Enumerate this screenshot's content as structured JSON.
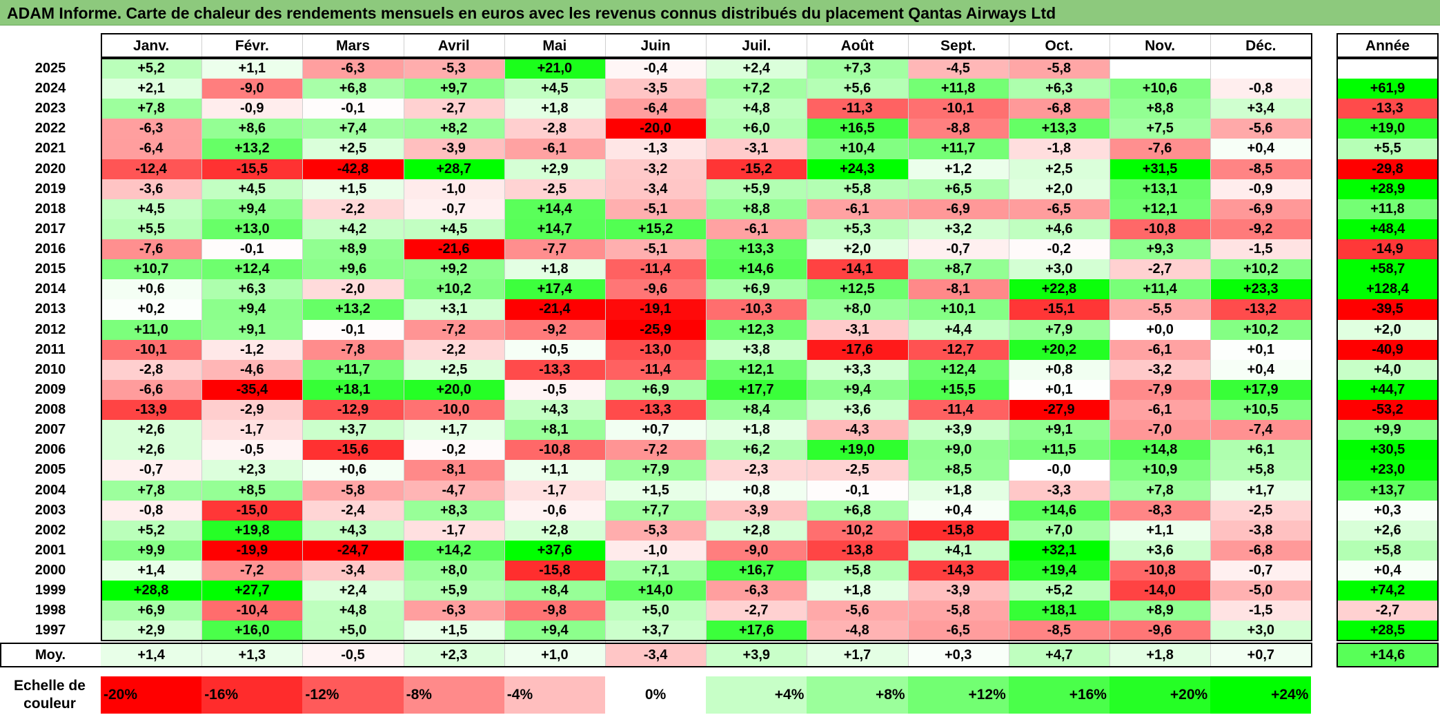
{
  "title": "ADAM Informe. Carte de chaleur des rendements mensuels en euros avec les revenus connus distribués du placement Qantas Airways Ltd",
  "chart_data": {
    "type": "heatmap",
    "title": "ADAM Informe. Carte de chaleur des rendements mensuels en euros avec les revenus connus distribués du placement Qantas Airways Ltd",
    "columns": [
      "Janv.",
      "Févr.",
      "Mars",
      "Avril",
      "Mai",
      "Juin",
      "Juil.",
      "Août",
      "Sept.",
      "Oct.",
      "Nov.",
      "Déc."
    ],
    "year_column_label": "Année",
    "average_row_label": "Moy.",
    "rows": [
      {
        "year": "2025",
        "values": [
          "+5,2",
          "+1,1",
          "-6,3",
          "-5,3",
          "+21,0",
          "-0,4",
          "+2,4",
          "+7,3",
          "-4,5",
          "-5,8",
          "",
          ""
        ],
        "annual": ""
      },
      {
        "year": "2024",
        "values": [
          "+2,1",
          "-9,0",
          "+6,8",
          "+9,7",
          "+4,5",
          "-3,5",
          "+7,2",
          "+5,6",
          "+11,8",
          "+6,3",
          "+10,6",
          "-0,8"
        ],
        "annual": "+61,9"
      },
      {
        "year": "2023",
        "values": [
          "+7,8",
          "-0,9",
          "-0,1",
          "-2,7",
          "+1,8",
          "-6,4",
          "+4,8",
          "-11,3",
          "-10,1",
          "-6,8",
          "+8,8",
          "+3,4"
        ],
        "annual": "-13,3"
      },
      {
        "year": "2022",
        "values": [
          "-6,3",
          "+8,6",
          "+7,4",
          "+8,2",
          "-2,8",
          "-20,0",
          "+6,0",
          "+16,5",
          "-8,8",
          "+13,3",
          "+7,5",
          "-5,6"
        ],
        "annual": "+19,0"
      },
      {
        "year": "2021",
        "values": [
          "-6,4",
          "+13,2",
          "+2,5",
          "-3,9",
          "-6,1",
          "-1,3",
          "-3,1",
          "+10,4",
          "+11,7",
          "-1,8",
          "-7,6",
          "+0,4"
        ],
        "annual": "+5,5"
      },
      {
        "year": "2020",
        "values": [
          "-12,4",
          "-15,5",
          "-42,8",
          "+28,7",
          "+2,9",
          "-3,2",
          "-15,2",
          "+24,3",
          "+1,2",
          "+2,5",
          "+31,5",
          "-8,5"
        ],
        "annual": "-29,8"
      },
      {
        "year": "2019",
        "values": [
          "-3,6",
          "+4,5",
          "+1,5",
          "-1,0",
          "-2,5",
          "-3,4",
          "+5,9",
          "+5,8",
          "+6,5",
          "+2,0",
          "+13,1",
          "-0,9"
        ],
        "annual": "+28,9"
      },
      {
        "year": "2018",
        "values": [
          "+4,5",
          "+9,4",
          "-2,2",
          "-0,7",
          "+14,4",
          "-5,1",
          "+8,8",
          "-6,1",
          "-6,9",
          "-6,5",
          "+12,1",
          "-6,9"
        ],
        "annual": "+11,8"
      },
      {
        "year": "2017",
        "values": [
          "+5,5",
          "+13,0",
          "+4,2",
          "+4,5",
          "+14,7",
          "+15,2",
          "-6,1",
          "+5,3",
          "+3,2",
          "+4,6",
          "-10,8",
          "-9,2"
        ],
        "annual": "+48,4"
      },
      {
        "year": "2016",
        "values": [
          "-7,6",
          "-0,1",
          "+8,9",
          "-21,6",
          "-7,7",
          "-5,1",
          "+13,3",
          "+2,0",
          "-0,7",
          "-0,2",
          "+9,3",
          "-1,5"
        ],
        "annual": "-14,9"
      },
      {
        "year": "2015",
        "values": [
          "+10,7",
          "+12,4",
          "+9,6",
          "+9,2",
          "+1,8",
          "-11,4",
          "+14,6",
          "-14,1",
          "+8,7",
          "+3,0",
          "-2,7",
          "+10,2"
        ],
        "annual": "+58,7"
      },
      {
        "year": "2014",
        "values": [
          "+0,6",
          "+6,3",
          "-2,0",
          "+10,2",
          "+17,4",
          "-9,6",
          "+6,9",
          "+12,5",
          "-8,1",
          "+22,8",
          "+11,4",
          "+23,3"
        ],
        "annual": "+128,4"
      },
      {
        "year": "2013",
        "values": [
          "+0,2",
          "+9,4",
          "+13,2",
          "+3,1",
          "-21,4",
          "-19,1",
          "-10,3",
          "+8,0",
          "+10,1",
          "-15,1",
          "-5,5",
          "-13,2"
        ],
        "annual": "-39,5"
      },
      {
        "year": "2012",
        "values": [
          "+11,0",
          "+9,1",
          "-0,1",
          "-7,2",
          "-9,2",
          "-25,9",
          "+12,3",
          "-3,1",
          "+4,4",
          "+7,9",
          "+0,0",
          "+10,2"
        ],
        "annual": "+2,0"
      },
      {
        "year": "2011",
        "values": [
          "-10,1",
          "-1,2",
          "-7,8",
          "-2,2",
          "+0,5",
          "-13,0",
          "+3,8",
          "-17,6",
          "-12,7",
          "+20,2",
          "-6,1",
          "+0,1"
        ],
        "annual": "-40,9"
      },
      {
        "year": "2010",
        "values": [
          "-2,8",
          "-4,6",
          "+11,7",
          "+2,5",
          "-13,3",
          "-11,4",
          "+12,1",
          "+3,3",
          "+12,4",
          "+0,8",
          "-3,2",
          "+0,4"
        ],
        "annual": "+4,0"
      },
      {
        "year": "2009",
        "values": [
          "-6,6",
          "-35,4",
          "+18,1",
          "+20,0",
          "-0,5",
          "+6,9",
          "+17,7",
          "+9,4",
          "+15,5",
          "+0,1",
          "-7,9",
          "+17,9"
        ],
        "annual": "+44,7"
      },
      {
        "year": "2008",
        "values": [
          "-13,9",
          "-2,9",
          "-12,9",
          "-10,0",
          "+4,3",
          "-13,3",
          "+8,4",
          "+3,6",
          "-11,4",
          "-27,9",
          "-6,1",
          "+10,5"
        ],
        "annual": "-53,2"
      },
      {
        "year": "2007",
        "values": [
          "+2,6",
          "-1,7",
          "+3,7",
          "+1,7",
          "+8,1",
          "+0,7",
          "+1,8",
          "-4,3",
          "+3,9",
          "+9,1",
          "-7,0",
          "-7,4"
        ],
        "annual": "+9,9"
      },
      {
        "year": "2006",
        "values": [
          "+2,6",
          "-0,5",
          "-15,6",
          "-0,2",
          "-10,8",
          "-7,2",
          "+6,2",
          "+19,0",
          "+9,0",
          "+11,5",
          "+14,8",
          "+6,1"
        ],
        "annual": "+30,5"
      },
      {
        "year": "2005",
        "values": [
          "-0,7",
          "+2,3",
          "+0,6",
          "-8,1",
          "+1,1",
          "+7,9",
          "-2,3",
          "-2,5",
          "+8,5",
          "-0,0",
          "+10,9",
          "+5,8"
        ],
        "annual": "+23,0"
      },
      {
        "year": "2004",
        "values": [
          "+7,8",
          "+8,5",
          "-5,8",
          "-4,7",
          "-1,7",
          "+1,5",
          "+0,8",
          "-0,1",
          "+1,8",
          "-3,3",
          "+7,8",
          "+1,7"
        ],
        "annual": "+13,7"
      },
      {
        "year": "2003",
        "values": [
          "-0,8",
          "-15,0",
          "-2,4",
          "+8,3",
          "-0,6",
          "+7,7",
          "-3,9",
          "+6,8",
          "+0,4",
          "+14,6",
          "-8,3",
          "-2,5"
        ],
        "annual": "+0,3"
      },
      {
        "year": "2002",
        "values": [
          "+5,2",
          "+19,8",
          "+4,3",
          "-1,7",
          "+2,8",
          "-5,3",
          "+2,8",
          "-10,2",
          "-15,8",
          "+7,0",
          "+1,1",
          "-3,8"
        ],
        "annual": "+2,6"
      },
      {
        "year": "2001",
        "values": [
          "+9,9",
          "-19,9",
          "-24,7",
          "+14,2",
          "+37,6",
          "-1,0",
          "-9,0",
          "-13,8",
          "+4,1",
          "+32,1",
          "+3,6",
          "-6,8"
        ],
        "annual": "+5,8"
      },
      {
        "year": "2000",
        "values": [
          "+1,4",
          "-7,2",
          "-3,4",
          "+8,0",
          "-15,8",
          "+7,1",
          "+16,7",
          "+5,8",
          "-14,3",
          "+19,4",
          "-10,8",
          "-0,7"
        ],
        "annual": "+0,4"
      },
      {
        "year": "1999",
        "values": [
          "+28,8",
          "+27,7",
          "+2,4",
          "+5,9",
          "+8,4",
          "+14,0",
          "-6,3",
          "+1,8",
          "-3,9",
          "+5,2",
          "-14,0",
          "-5,0"
        ],
        "annual": "+74,2"
      },
      {
        "year": "1998",
        "values": [
          "+6,9",
          "-10,4",
          "+4,8",
          "-6,3",
          "-9,8",
          "+5,0",
          "-2,7",
          "-5,6",
          "-5,8",
          "+18,1",
          "+8,9",
          "-1,5"
        ],
        "annual": "-2,7"
      },
      {
        "year": "1997",
        "values": [
          "+2,9",
          "+16,0",
          "+5,0",
          "+1,5",
          "+9,4",
          "+3,7",
          "+17,6",
          "-4,8",
          "-6,5",
          "-8,5",
          "-9,6",
          "+3,0"
        ],
        "annual": "+28,5"
      }
    ],
    "averages": {
      "values": [
        "+1,4",
        "+1,3",
        "-0,5",
        "+2,3",
        "+1,0",
        "-3,4",
        "+3,9",
        "+1,7",
        "+0,3",
        "+4,7",
        "+1,8",
        "+0,7"
      ],
      "annual": "+14,6"
    },
    "color_scale": {
      "label": "Echelle de couleur",
      "steps": [
        {
          "label": "-20%",
          "value": -20,
          "align": "left"
        },
        {
          "label": "-16%",
          "value": -16,
          "align": "left"
        },
        {
          "label": "-12%",
          "value": -12,
          "align": "left"
        },
        {
          "label": "-8%",
          "value": -8,
          "align": "left"
        },
        {
          "label": "-4%",
          "value": -4,
          "align": "left"
        },
        {
          "label": "0%",
          "value": 0,
          "align": "center"
        },
        {
          "label": "+4%",
          "value": 4,
          "align": "right"
        },
        {
          "label": "+8%",
          "value": 8,
          "align": "right"
        },
        {
          "label": "+12%",
          "value": 12,
          "align": "right"
        },
        {
          "label": "+16%",
          "value": 16,
          "align": "right"
        },
        {
          "label": "+20%",
          "value": 20,
          "align": "right"
        },
        {
          "label": "+24%",
          "value": 24,
          "align": "right"
        }
      ]
    },
    "colors": {
      "negative_max": "#ff0000",
      "positive_max": "#00ff00",
      "neutral": "#ffffff",
      "title_bar": "#8dc97d"
    }
  }
}
